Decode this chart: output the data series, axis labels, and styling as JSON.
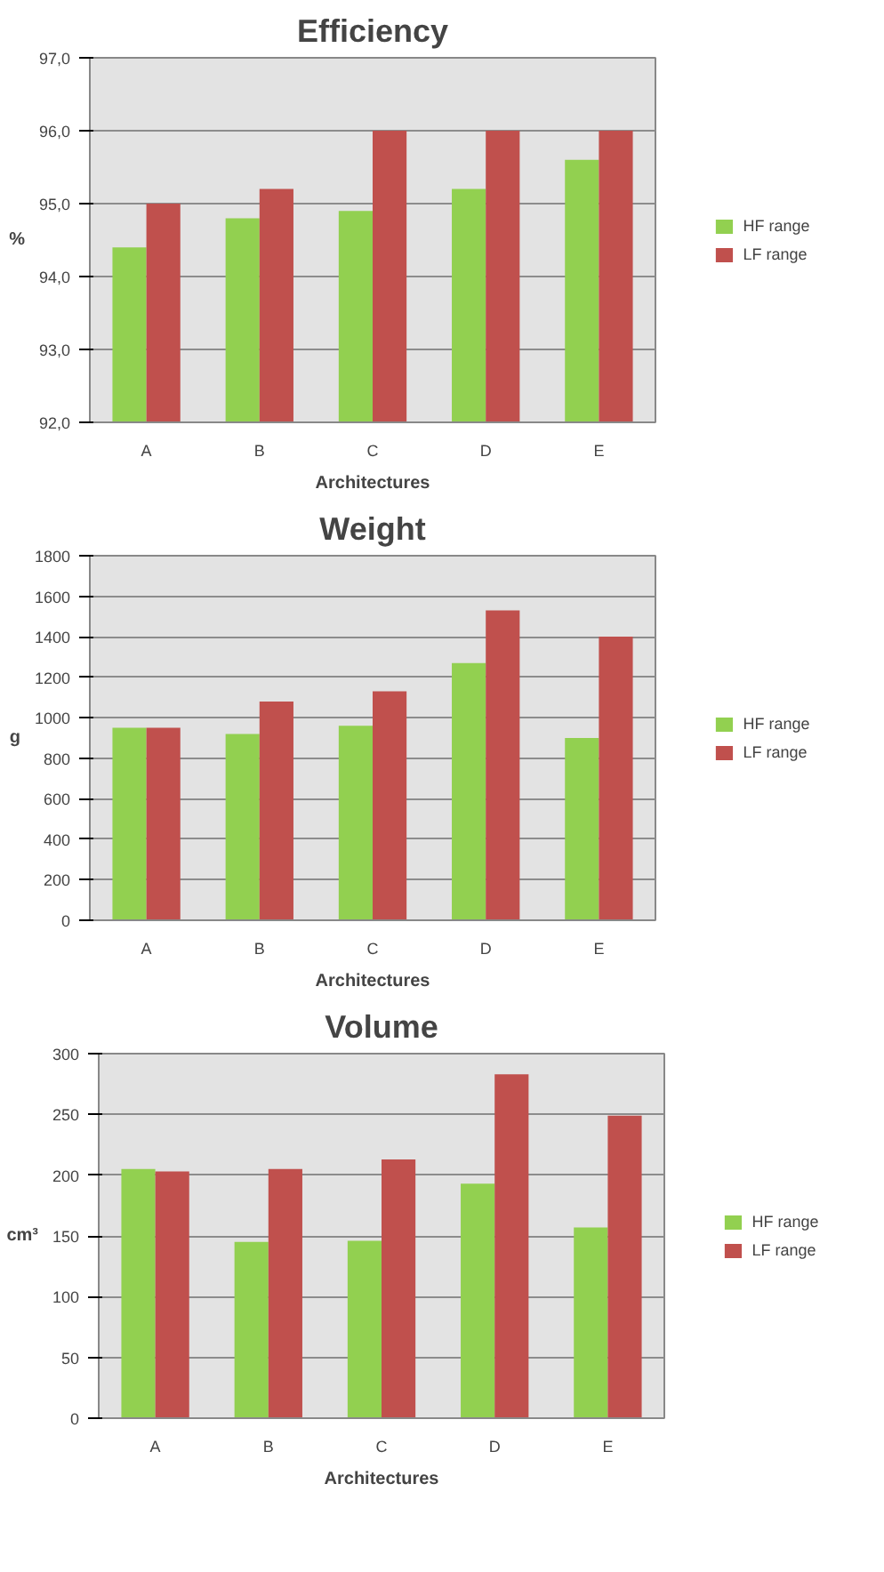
{
  "chart_data": [
    {
      "type": "bar",
      "title": "Efficiency",
      "xlabel": "Architectures",
      "ylabel": "%",
      "categories": [
        "A",
        "B",
        "C",
        "D",
        "E"
      ],
      "series": [
        {
          "name": "HF range",
          "color": "#92d050",
          "values": [
            94.4,
            94.8,
            94.9,
            95.2,
            95.6
          ]
        },
        {
          "name": "LF range",
          "color": "#c0504d",
          "values": [
            95.0,
            95.2,
            96.0,
            96.0,
            96.0
          ]
        }
      ],
      "ylim": [
        92,
        97
      ],
      "yticks": [
        {
          "value": 92,
          "label": "92,0"
        },
        {
          "value": 93,
          "label": "93,0"
        },
        {
          "value": 94,
          "label": "94,0"
        },
        {
          "value": 95,
          "label": "95,0"
        },
        {
          "value": 96,
          "label": "96,0"
        },
        {
          "value": 97,
          "label": "97,0"
        }
      ],
      "grid": "y",
      "legend": "right"
    },
    {
      "type": "bar",
      "title": "Weight",
      "xlabel": "Architectures",
      "ylabel": "g",
      "categories": [
        "A",
        "B",
        "C",
        "D",
        "E"
      ],
      "series": [
        {
          "name": "HF range",
          "color": "#92d050",
          "values": [
            950,
            920,
            960,
            1270,
            900
          ]
        },
        {
          "name": "LF range",
          "color": "#c0504d",
          "values": [
            950,
            1080,
            1130,
            1530,
            1400
          ]
        }
      ],
      "ylim": [
        0,
        1800
      ],
      "yticks": [
        0,
        200,
        400,
        600,
        800,
        1000,
        1200,
        1400,
        1600,
        1800
      ],
      "grid": "y",
      "legend": "right"
    },
    {
      "type": "bar",
      "title": "Volume",
      "xlabel": "Architectures",
      "ylabel": "cm³",
      "categories": [
        "A",
        "B",
        "C",
        "D",
        "E"
      ],
      "series": [
        {
          "name": "HF range",
          "color": "#92d050",
          "values": [
            205,
            145,
            146,
            193,
            157
          ]
        },
        {
          "name": "LF range",
          "color": "#c0504d",
          "values": [
            203,
            205,
            213,
            283,
            249
          ]
        }
      ],
      "ylim": [
        0,
        300
      ],
      "yticks": [
        0,
        50,
        100,
        150,
        200,
        250,
        300
      ],
      "grid": "y",
      "legend": "right"
    }
  ]
}
